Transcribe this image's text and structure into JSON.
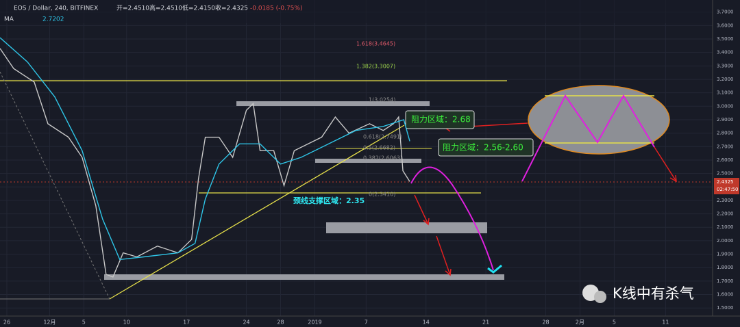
{
  "header": {
    "symbol": "EOS / Dollar, 240, BITFINEX",
    "open": "开=2.4510",
    "high": "高=2.4510",
    "low": "低=2.4150",
    "close": "收=2.4325",
    "change": "-0.0185 (-0.75%)",
    "indicator": "MA",
    "indicator_value": "2.7202"
  },
  "price_tag": {
    "price": "2.4325",
    "countdown": "02:47:50"
  },
  "annotations": {
    "resistance1": "阻力区域：2.68",
    "resistance2": "阻力区域：2.56-2.60",
    "neckline": "颈线支撑区域：2.35",
    "watermark": "K线中有杀气"
  },
  "fib_labels": [
    "1.618(3.4645)",
    "1.382(3.3007)",
    "1(3.0254)",
    "0.618(2.7491)",
    "0.5(2.6682)",
    "0.382(2.6063)",
    "0(2.3410)"
  ],
  "chart_data": {
    "type": "line",
    "xlim": [
      -0.8,
      82.5
    ],
    "ylim": [
      1.44,
      3.79
    ],
    "xticks": [
      {
        "value": 0,
        "label": "26"
      },
      {
        "value": 5,
        "label": "12月"
      },
      {
        "value": 9,
        "label": "5"
      },
      {
        "value": 14,
        "label": "10"
      },
      {
        "value": 21,
        "label": "17"
      },
      {
        "value": 28,
        "label": "24"
      },
      {
        "value": 32,
        "label": "28"
      },
      {
        "value": 36,
        "label": "2019"
      },
      {
        "value": 42,
        "label": "7"
      },
      {
        "value": 49,
        "label": "14"
      },
      {
        "value": 56,
        "label": "21"
      },
      {
        "value": 63,
        "label": "28"
      },
      {
        "value": 67,
        "label": "2月"
      },
      {
        "value": 71,
        "label": "5"
      },
      {
        "value": 77,
        "label": "11"
      }
    ],
    "yticks": [
      {
        "value": 1.5,
        "label": "1.5000"
      },
      {
        "value": 1.6,
        "label": "1.6000"
      },
      {
        "value": 1.7,
        "label": "1.7000"
      },
      {
        "value": 1.8,
        "label": "1.8000"
      },
      {
        "value": 1.9,
        "label": "1.9000"
      },
      {
        "value": 2.0,
        "label": "2.0000"
      },
      {
        "value": 2.1,
        "label": "2.1000"
      },
      {
        "value": 2.2,
        "label": "2.2000"
      },
      {
        "value": 2.3,
        "label": "2.3000"
      },
      {
        "value": 2.4,
        "label": "2.4000"
      },
      {
        "value": 2.5,
        "label": "2.5000"
      },
      {
        "value": 2.6,
        "label": "2.6000"
      },
      {
        "value": 2.7,
        "label": "2.7000"
      },
      {
        "value": 2.8,
        "label": "2.8000"
      },
      {
        "value": 2.9,
        "label": "2.9000"
      },
      {
        "value": 3.0,
        "label": "3.0000"
      },
      {
        "value": 3.1,
        "label": "3.1000"
      },
      {
        "value": 3.2,
        "label": "3.2000"
      },
      {
        "value": 3.3,
        "label": "3.3000"
      },
      {
        "value": 3.4,
        "label": "3.4000"
      },
      {
        "value": 3.5,
        "label": "3.5000"
      },
      {
        "value": 3.6,
        "label": "3.6000"
      },
      {
        "value": 3.7,
        "label": "3.7000"
      }
    ],
    "grid": true,
    "series": [
      {
        "color": "#c8c8c8",
        "x": [
          -0.8,
          0.8,
          3.2,
          4.8,
          7.2,
          8.8,
          10.4,
          11.6,
          12.4,
          13.6,
          15.2,
          17.6,
          20.0,
          21.6,
          22.4,
          23.2,
          24.8,
          26.4,
          28.0,
          28.8,
          29.6,
          31.2,
          32.4,
          33.6,
          35.2,
          36.8,
          38.4,
          40.0,
          42.4,
          44.0,
          45.2,
          45.8,
          46.3,
          47.1
        ],
        "values": [
          3.43,
          3.28,
          3.18,
          2.87,
          2.77,
          2.62,
          2.26,
          1.75,
          1.73,
          1.91,
          1.88,
          1.96,
          1.91,
          2.01,
          2.46,
          2.77,
          2.77,
          2.62,
          2.97,
          3.02,
          2.67,
          2.67,
          2.41,
          2.67,
          2.72,
          2.77,
          2.92,
          2.8,
          2.87,
          2.82,
          2.87,
          2.92,
          2.52,
          2.44
        ]
      },
      {
        "name": "MA",
        "color": "#2ec4e6",
        "x": [
          -0.8,
          2.4,
          5.6,
          8.8,
          11.2,
          13.2,
          16.0,
          20.0,
          22.0,
          23.2,
          24.8,
          27.2,
          29.6,
          32.0,
          34.4,
          37.6,
          40.8,
          44.0,
          46.4,
          47.1
        ],
        "values": [
          3.51,
          3.33,
          3.07,
          2.67,
          2.16,
          1.86,
          1.88,
          1.91,
          1.98,
          2.31,
          2.57,
          2.72,
          2.72,
          2.57,
          2.62,
          2.72,
          2.82,
          2.85,
          2.9,
          2.74
        ]
      }
    ]
  }
}
